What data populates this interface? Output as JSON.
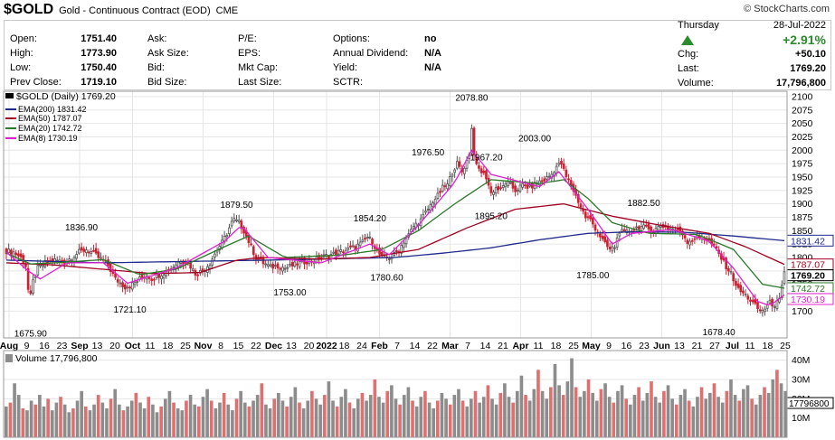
{
  "header": {
    "symbol": "$GOLD",
    "description": "Gold - Continuous Contract (EOD)",
    "exchange": "CME",
    "brand": "© StockCharts.com"
  },
  "quote": {
    "open_label": "Open:",
    "open": "1751.40",
    "high_label": "High:",
    "high": "1773.90",
    "low_label": "Low:",
    "low": "1750.40",
    "prev_label": "Prev Close:",
    "prev": "1719.10",
    "ask_label": "Ask:",
    "ask": "",
    "asksize_label": "Ask Size:",
    "asksize": "",
    "bid_label": "Bid:",
    "bid": "",
    "bidsize_label": "Bid Size:",
    "bidsize": "",
    "pe_label": "P/E:",
    "pe": "",
    "eps_label": "EPS:",
    "eps": "",
    "mktcap_label": "Mkt Cap:",
    "mktcap": "",
    "lastsize_label": "Last Size:",
    "lastsize": "",
    "options_label": "Options:",
    "options": "no",
    "dividend_label": "Annual Dividend:",
    "dividend": "N/A",
    "yield_label": "Yield:",
    "yield": "N/A",
    "sctr_label": "SCTR:",
    "sctr": "",
    "day": "Thursday",
    "date": "28-Jul-2022",
    "pct": "+2.91%",
    "chg_label": "Chg:",
    "chg": "+50.10",
    "last_label": "Last:",
    "last": "1769.20",
    "volume_label": "Volume:",
    "volume": "17,796,800"
  },
  "legend": {
    "main": "$GOLD (Daily) 1769.20",
    "ema200": "EMA(200) 1831.42",
    "ema50": "EMA(50) 1787.07",
    "ema20": "EMA(20) 1742.72",
    "ema8": "EMA(8) 1730.19",
    "volume": "Volume 17,796,800"
  },
  "colors": {
    "up": "#555555",
    "down": "#cc2233",
    "ema200": "#1f2a8a",
    "ema50": "#a00020",
    "ema20": "#2a7a2a",
    "ema8": "#e020d0",
    "vol_up": "#8c8c8c",
    "vol_down": "#e07070"
  },
  "chart_data": {
    "type": "candlestick",
    "title": "$GOLD (Daily) 1769.20",
    "y_range": [
      1650,
      2110
    ],
    "y_ticks": [
      1700,
      1725,
      1750,
      1775,
      1800,
      1825,
      1850,
      1875,
      1900,
      1925,
      1950,
      1975,
      2000,
      2025,
      2050,
      2075,
      2100
    ],
    "x_tick_labels": [
      "Aug",
      "9",
      "16",
      "23",
      "Sep",
      "13",
      "20",
      "Oct",
      "11",
      "18",
      "25",
      "Nov",
      "8",
      "15",
      "22",
      "Dec",
      "13",
      "20",
      "2022",
      "18",
      "24",
      "Feb",
      "7",
      "14",
      "22",
      "Mar",
      "7",
      "14",
      "21",
      "Apr",
      "11",
      "18",
      "25",
      "May",
      "9",
      "16",
      "23",
      "Jun",
      "13",
      "21",
      "27",
      "Jul",
      "11",
      "18",
      "25"
    ],
    "close_path": [
      [
        0,
        1812
      ],
      [
        3,
        1810
      ],
      [
        6,
        1800
      ],
      [
        8,
        1785
      ],
      [
        9,
        1740
      ],
      [
        10,
        1728
      ],
      [
        11,
        1755
      ],
      [
        13,
        1780
      ],
      [
        16,
        1790
      ],
      [
        20,
        1795
      ],
      [
        24,
        1792
      ],
      [
        27,
        1800
      ],
      [
        30,
        1810
      ],
      [
        33,
        1815
      ],
      [
        36,
        1808
      ],
      [
        38,
        1800
      ],
      [
        40,
        1795
      ],
      [
        42,
        1785
      ],
      [
        45,
        1760
      ],
      [
        49,
        1745
      ],
      [
        52,
        1750
      ],
      [
        55,
        1760
      ],
      [
        58,
        1768
      ],
      [
        60,
        1760
      ],
      [
        62,
        1765
      ],
      [
        65,
        1772
      ],
      [
        68,
        1780
      ],
      [
        72,
        1795
      ],
      [
        75,
        1790
      ],
      [
        78,
        1770
      ],
      [
        81,
        1775
      ],
      [
        84,
        1790
      ],
      [
        87,
        1815
      ],
      [
        89,
        1828
      ],
      [
        91,
        1845
      ],
      [
        93,
        1865
      ],
      [
        94,
        1870
      ],
      [
        96,
        1865
      ],
      [
        98,
        1850
      ],
      [
        100,
        1830
      ],
      [
        103,
        1800
      ],
      [
        106,
        1790
      ],
      [
        109,
        1782
      ],
      [
        112,
        1785
      ],
      [
        115,
        1780
      ],
      [
        118,
        1785
      ],
      [
        121,
        1790
      ],
      [
        124,
        1793
      ],
      [
        127,
        1795
      ],
      [
        131,
        1802
      ],
      [
        134,
        1805
      ],
      [
        137,
        1810
      ],
      [
        141,
        1815
      ],
      [
        144,
        1820
      ],
      [
        147,
        1828
      ],
      [
        149,
        1838
      ],
      [
        151,
        1830
      ],
      [
        153,
        1812
      ],
      [
        155,
        1800
      ],
      [
        158,
        1800
      ],
      [
        160,
        1805
      ],
      [
        162,
        1815
      ],
      [
        164,
        1830
      ],
      [
        166,
        1842
      ],
      [
        168,
        1858
      ],
      [
        171,
        1870
      ],
      [
        174,
        1890
      ],
      [
        176,
        1905
      ],
      [
        178,
        1915
      ],
      [
        180,
        1930
      ],
      [
        182,
        1935
      ],
      [
        184,
        1960
      ],
      [
        186,
        1975
      ],
      [
        188,
        1960
      ],
      [
        190,
        1980
      ],
      [
        191,
        1995
      ],
      [
        192,
        2040
      ],
      [
        193,
        1995
      ],
      [
        194,
        1970
      ],
      [
        196,
        1960
      ],
      [
        198,
        1950
      ],
      [
        200,
        1920
      ],
      [
        202,
        1930
      ],
      [
        204,
        1925
      ],
      [
        206,
        1940
      ],
      [
        208,
        1935
      ],
      [
        210,
        1925
      ],
      [
        213,
        1935
      ],
      [
        216,
        1930
      ],
      [
        219,
        1940
      ],
      [
        222,
        1945
      ],
      [
        225,
        1955
      ],
      [
        227,
        1970
      ],
      [
        229,
        1975
      ],
      [
        231,
        1950
      ],
      [
        233,
        1935
      ],
      [
        235,
        1915
      ],
      [
        237,
        1895
      ],
      [
        239,
        1875
      ],
      [
        241,
        1870
      ],
      [
        243,
        1855
      ],
      [
        245,
        1840
      ],
      [
        247,
        1825
      ],
      [
        249,
        1815
      ],
      [
        251,
        1820
      ],
      [
        253,
        1850
      ],
      [
        255,
        1845
      ],
      [
        258,
        1852
      ],
      [
        261,
        1858
      ],
      [
        264,
        1855
      ],
      [
        267,
        1850
      ],
      [
        270,
        1860
      ],
      [
        273,
        1855
      ],
      [
        276,
        1852
      ],
      [
        279,
        1845
      ],
      [
        281,
        1830
      ],
      [
        284,
        1835
      ],
      [
        287,
        1840
      ],
      [
        290,
        1830
      ],
      [
        293,
        1815
      ],
      [
        296,
        1790
      ],
      [
        299,
        1770
      ],
      [
        302,
        1740
      ],
      [
        305,
        1730
      ],
      [
        307,
        1720
      ],
      [
        309,
        1710
      ],
      [
        311,
        1700
      ],
      [
        313,
        1705
      ],
      [
        315,
        1715
      ],
      [
        317,
        1712
      ],
      [
        319,
        1720
      ],
      [
        321,
        1769
      ]
    ],
    "ema200_path": [
      [
        0,
        1795
      ],
      [
        40,
        1790
      ],
      [
        80,
        1793
      ],
      [
        120,
        1796
      ],
      [
        160,
        1800
      ],
      [
        180,
        1808
      ],
      [
        200,
        1818
      ],
      [
        220,
        1833
      ],
      [
        240,
        1845
      ],
      [
        260,
        1848
      ],
      [
        280,
        1847
      ],
      [
        300,
        1840
      ],
      [
        321,
        1831.42
      ]
    ],
    "ema50_path": [
      [
        0,
        1790
      ],
      [
        20,
        1786
      ],
      [
        40,
        1778
      ],
      [
        60,
        1770
      ],
      [
        80,
        1772
      ],
      [
        95,
        1795
      ],
      [
        105,
        1800
      ],
      [
        130,
        1797
      ],
      [
        150,
        1800
      ],
      [
        170,
        1815
      ],
      [
        190,
        1855
      ],
      [
        210,
        1890
      ],
      [
        230,
        1900
      ],
      [
        250,
        1877
      ],
      [
        270,
        1860
      ],
      [
        290,
        1845
      ],
      [
        305,
        1820
      ],
      [
        321,
        1787.07
      ]
    ],
    "ema20_path": [
      [
        0,
        1808
      ],
      [
        10,
        1788
      ],
      [
        20,
        1790
      ],
      [
        40,
        1796
      ],
      [
        55,
        1768
      ],
      [
        70,
        1778
      ],
      [
        90,
        1820
      ],
      [
        100,
        1840
      ],
      [
        115,
        1800
      ],
      [
        140,
        1805
      ],
      [
        155,
        1815
      ],
      [
        170,
        1850
      ],
      [
        185,
        1900
      ],
      [
        200,
        1945
      ],
      [
        220,
        1938
      ],
      [
        230,
        1945
      ],
      [
        240,
        1910
      ],
      [
        250,
        1865
      ],
      [
        265,
        1845
      ],
      [
        285,
        1843
      ],
      [
        300,
        1815
      ],
      [
        312,
        1750
      ],
      [
        321,
        1742.72
      ]
    ],
    "ema8_path": [
      [
        0,
        1810
      ],
      [
        9,
        1775
      ],
      [
        14,
        1760
      ],
      [
        25,
        1790
      ],
      [
        40,
        1790
      ],
      [
        50,
        1752
      ],
      [
        70,
        1780
      ],
      [
        90,
        1830
      ],
      [
        97,
        1860
      ],
      [
        108,
        1800
      ],
      [
        130,
        1790
      ],
      [
        150,
        1825
      ],
      [
        158,
        1805
      ],
      [
        170,
        1860
      ],
      [
        185,
        1940
      ],
      [
        192,
        2000
      ],
      [
        200,
        1955
      ],
      [
        220,
        1932
      ],
      [
        228,
        1960
      ],
      [
        240,
        1890
      ],
      [
        250,
        1825
      ],
      [
        258,
        1845
      ],
      [
        275,
        1852
      ],
      [
        290,
        1830
      ],
      [
        300,
        1780
      ],
      [
        310,
        1718
      ],
      [
        315,
        1710
      ],
      [
        321,
        1730.19
      ]
    ],
    "annotations": [
      {
        "x": 10,
        "y": 1675.9,
        "label": "1675.90",
        "pos": "below"
      },
      {
        "x": 31,
        "y": 1836.9,
        "label": "1836.90",
        "pos": "above"
      },
      {
        "x": 51,
        "y": 1721.1,
        "label": "1721.10",
        "pos": "below"
      },
      {
        "x": 95,
        "y": 1879.5,
        "label": "1879.50",
        "pos": "above"
      },
      {
        "x": 117,
        "y": 1753.0,
        "label": "1753.00",
        "pos": "below"
      },
      {
        "x": 150,
        "y": 1854.2,
        "label": "1854.20",
        "pos": "above"
      },
      {
        "x": 157,
        "y": 1780.6,
        "label": "1780.60",
        "pos": "below"
      },
      {
        "x": 174,
        "y": 1976.5,
        "label": "1976.50",
        "pos": "above"
      },
      {
        "x": 192,
        "y": 2078.8,
        "label": "2078.80",
        "pos": "above"
      },
      {
        "x": 198,
        "y": 1967.2,
        "label": "1967.20",
        "pos": "above"
      },
      {
        "x": 200,
        "y": 1895.2,
        "label": "1895.20",
        "pos": "below"
      },
      {
        "x": 218,
        "y": 2003.0,
        "label": "2003.00",
        "pos": "above"
      },
      {
        "x": 242,
        "y": 1785.0,
        "label": "1785.00",
        "pos": "below"
      },
      {
        "x": 263,
        "y": 1882.5,
        "label": "1882.50",
        "pos": "above"
      },
      {
        "x": 294,
        "y": 1678.4,
        "label": "1678.40",
        "pos": "below"
      }
    ],
    "price_tags": [
      {
        "value": 1831.42,
        "label": "1831.42",
        "color": "#1f2a8a"
      },
      {
        "value": 1787.07,
        "label": "1787.07",
        "color": "#a00020"
      },
      {
        "value": 1769.2,
        "label": "1769.20",
        "color": "#000000"
      },
      {
        "value": 1742.72,
        "label": "1742.72",
        "color": "#2a7a2a"
      },
      {
        "value": 1730.19,
        "label": "1730.19",
        "color": "#e020d0"
      }
    ],
    "volume": {
      "y_ticks": [
        "40M",
        "30M",
        "20M",
        "10M"
      ],
      "last_tag": "17796800",
      "last_value_millions": 17.8,
      "bars_millions": [
        16,
        18,
        28,
        22,
        15,
        14,
        19,
        17,
        22,
        16,
        20,
        14,
        18,
        21,
        17,
        13,
        15,
        19,
        24,
        16,
        14,
        17,
        22,
        18,
        15,
        20,
        25,
        17,
        14,
        16,
        19,
        23,
        18,
        15,
        21,
        17,
        13,
        16,
        20,
        24,
        18,
        15,
        14,
        19,
        22,
        17,
        16,
        21,
        25,
        19,
        15,
        18,
        23,
        17,
        14,
        20,
        24,
        18,
        16,
        19,
        22,
        28,
        17,
        15,
        20,
        23,
        19,
        16,
        21,
        26,
        18,
        15,
        19,
        24,
        20,
        17,
        22,
        29,
        19,
        16,
        21,
        25,
        18,
        15,
        20,
        23,
        19,
        22,
        30,
        21,
        18,
        24,
        27,
        20,
        17,
        22,
        26,
        19,
        16,
        21,
        24,
        18,
        15,
        19,
        23,
        20,
        17,
        22,
        25,
        19,
        16,
        20,
        24,
        18,
        21,
        27,
        20,
        17,
        23,
        28,
        21,
        18,
        24,
        32,
        22,
        19,
        25,
        35,
        24,
        20,
        26,
        38,
        27,
        22,
        29,
        41,
        26,
        21,
        24,
        30,
        23,
        19,
        25,
        28,
        21,
        18,
        24,
        27,
        20,
        17,
        22,
        26,
        19,
        23,
        29,
        21,
        18,
        24,
        27,
        20,
        17,
        22,
        25,
        19,
        16,
        21,
        26,
        20,
        23,
        28,
        21,
        18,
        24,
        30,
        22,
        19,
        25,
        27,
        20,
        17,
        22,
        26,
        23,
        30,
        35,
        28,
        24
      ]
    }
  }
}
